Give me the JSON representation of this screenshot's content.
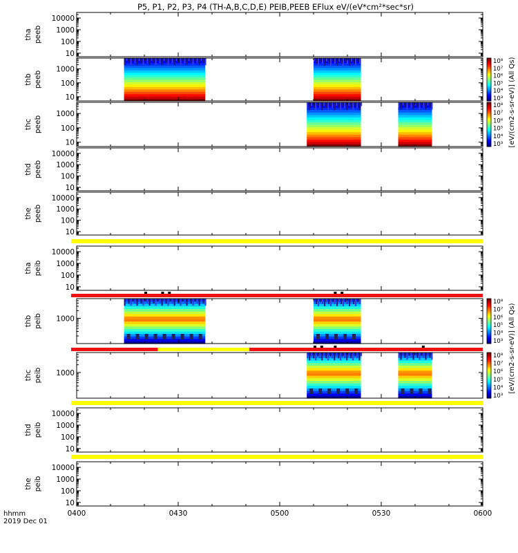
{
  "title": "P5, P1, P2, P3, P4 (TH-A,B,C,D,E) PEIB,PEEB EFlux eV/(eV*cm²*sec*sr)",
  "x_axis": {
    "ticks": [
      "0400",
      "0430",
      "0500",
      "0530",
      "0600"
    ],
    "label_line1": "hhmm",
    "label_line2": "2019 Dec 01"
  },
  "colorbars": [
    {
      "label": "[eV/(cm2-s-sr-eV)] (All Qs)",
      "tick_labels": [
        "10³",
        "10⁴",
        "10⁵",
        "10⁶",
        "10⁷",
        "10⁸"
      ]
    },
    {
      "label": "[eV/(cm2-s-sr-eV)] (All Qs)",
      "tick_labels": [
        "10³",
        "10⁴",
        "10⁵",
        "10⁶",
        "10⁷",
        "10⁸"
      ]
    }
  ],
  "colors": {
    "flag_red": "#ee1111",
    "flag_yellow": "#ffff00",
    "flag_black": "#000000"
  },
  "chart_data": {
    "type": "heatmap",
    "x_range": [
      "0400",
      "0600"
    ],
    "panels": [
      {
        "line1": "tha",
        "line2": "peeb",
        "y_ticks": [
          "10",
          "100",
          "1000",
          "10000"
        ],
        "log": true,
        "ylim": [
          5,
          30000
        ],
        "intervals": []
      },
      {
        "line1": "thb",
        "line2": "peeb",
        "y_ticks": [
          "10",
          "100",
          "1000"
        ],
        "log": true,
        "ylim": [
          5,
          6000
        ],
        "intervals": [
          [
            "0414",
            "0438"
          ],
          [
            "0510",
            "0524"
          ]
        ]
      },
      {
        "line1": "thc",
        "line2": "peeb",
        "y_ticks": [
          "10",
          "100",
          "1000"
        ],
        "log": true,
        "ylim": [
          5,
          6000
        ],
        "intervals": [
          [
            "0508",
            "0524"
          ],
          [
            "0535",
            "0545"
          ]
        ]
      },
      {
        "line1": "thd",
        "line2": "peeb",
        "y_ticks": [
          "10",
          "100",
          "1000",
          "10000"
        ],
        "log": true,
        "ylim": [
          5,
          30000
        ],
        "intervals": []
      },
      {
        "line1": "the",
        "line2": "peeb",
        "y_ticks": [
          "10",
          "100",
          "1000",
          "10000"
        ],
        "log": true,
        "ylim": [
          5,
          30000
        ],
        "intervals": []
      },
      {
        "line1": "tha",
        "line2": "peib",
        "y_ticks": [
          "10",
          "100",
          "1000",
          "10000"
        ],
        "log": true,
        "ylim": [
          5,
          30000
        ],
        "intervals": []
      },
      {
        "line1": "thb",
        "line2": "peib",
        "y_ticks": [
          "1000"
        ],
        "log": true,
        "ylim": [
          100,
          6000
        ],
        "intervals": [
          [
            "0414",
            "0438"
          ],
          [
            "0510",
            "0524"
          ]
        ]
      },
      {
        "line1": "thc",
        "line2": "peib",
        "y_ticks": [
          "1000"
        ],
        "log": true,
        "ylim": [
          100,
          6000
        ],
        "intervals": [
          [
            "0508",
            "0524"
          ],
          [
            "0535",
            "0545"
          ]
        ]
      },
      {
        "line1": "thd",
        "line2": "peib",
        "y_ticks": [
          "10",
          "100",
          "1000",
          "10000"
        ],
        "log": true,
        "ylim": [
          5,
          30000
        ],
        "intervals": []
      },
      {
        "line1": "the",
        "line2": "peib",
        "y_ticks": [
          "10",
          "100",
          "1000",
          "10000"
        ],
        "log": true,
        "ylim": [
          5,
          30000
        ],
        "intervals": []
      }
    ]
  }
}
